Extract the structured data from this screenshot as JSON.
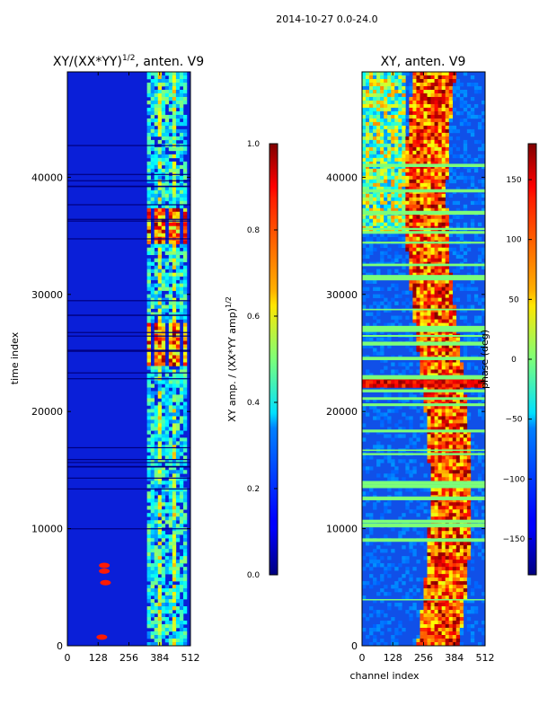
{
  "figure": {
    "suptitle": "2014-10-27 0.0-24.0"
  },
  "chart_data": [
    {
      "type": "heatmap",
      "title": "XY/(XX*YY)^(1/2), anten. V9",
      "title_main": "XY/(XX*YY)",
      "title_sup": "1/2",
      "title_tail": ", anten. V9",
      "xlabel": "",
      "ylabel": "time index",
      "xlim": [
        0,
        512
      ],
      "ylim": [
        0,
        49000
      ],
      "xticks": [
        "0",
        "128",
        "256",
        "384",
        "512"
      ],
      "yticks": [
        "0",
        "10000",
        "20000",
        "30000",
        "40000"
      ],
      "colormap": "jet",
      "colorbar": {
        "label_main": "XY amp. / (XX*YY amp)",
        "label_sup": "1/2",
        "range": [
          0.0,
          1.0
        ],
        "ticks": [
          "0.0",
          "0.2",
          "0.4",
          "0.6",
          "0.8",
          "1.0"
        ]
      }
    },
    {
      "type": "heatmap",
      "title": "XY, anten. V9",
      "xlabel": "channel index",
      "ylabel": "",
      "xlim": [
        0,
        512
      ],
      "ylim": [
        0,
        49000
      ],
      "xticks": [
        "0",
        "128",
        "256",
        "384",
        "512"
      ],
      "yticks": [
        "0",
        "10000",
        "20000",
        "30000",
        "40000"
      ],
      "colormap": "jet",
      "colorbar": {
        "label": "phase (deg)",
        "range": [
          -180,
          180
        ],
        "ticks": [
          "−150",
          "−100",
          "−50",
          "0",
          "50",
          "100",
          "150"
        ]
      }
    }
  ]
}
